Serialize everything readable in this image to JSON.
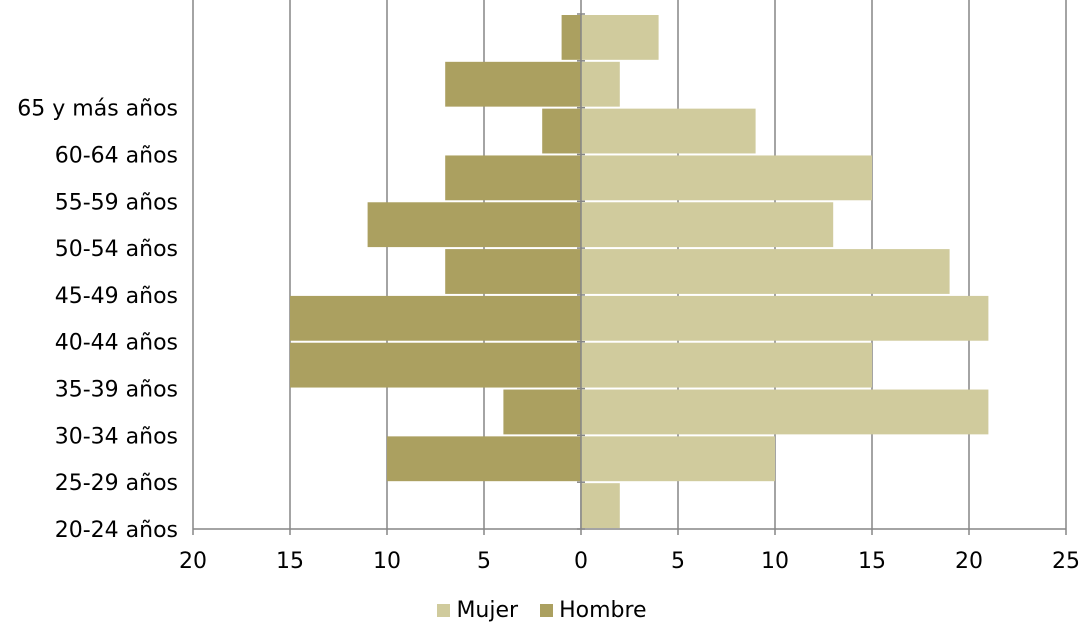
{
  "chart_data": {
    "type": "bar",
    "orientation": "horizontal",
    "layout": "population-pyramid",
    "categories": [
      "20-24 años",
      "25-29 años",
      "30-34 años",
      "35-39 años",
      "40-44 años",
      "45-49 años",
      "50-54 años",
      "55-59 años",
      "60-64 años",
      "65 y más años",
      ""
    ],
    "series": [
      {
        "name": "Mujer",
        "color": "#d0cb9d",
        "side": "right",
        "values": [
          2,
          10,
          21,
          15,
          21,
          19,
          13,
          15,
          9,
          2,
          4
        ]
      },
      {
        "name": "Hombre",
        "color": "#aba060",
        "side": "left",
        "values": [
          0,
          10,
          4,
          15,
          15,
          7,
          11,
          7,
          2,
          7,
          1
        ]
      }
    ],
    "x_ticks": [
      "20",
      "15",
      "10",
      "5",
      "0",
      "5",
      "10",
      "15",
      "20",
      "25"
    ],
    "xlim": [
      -20,
      25
    ],
    "grid": "vertical",
    "legend_position": "bottom"
  }
}
